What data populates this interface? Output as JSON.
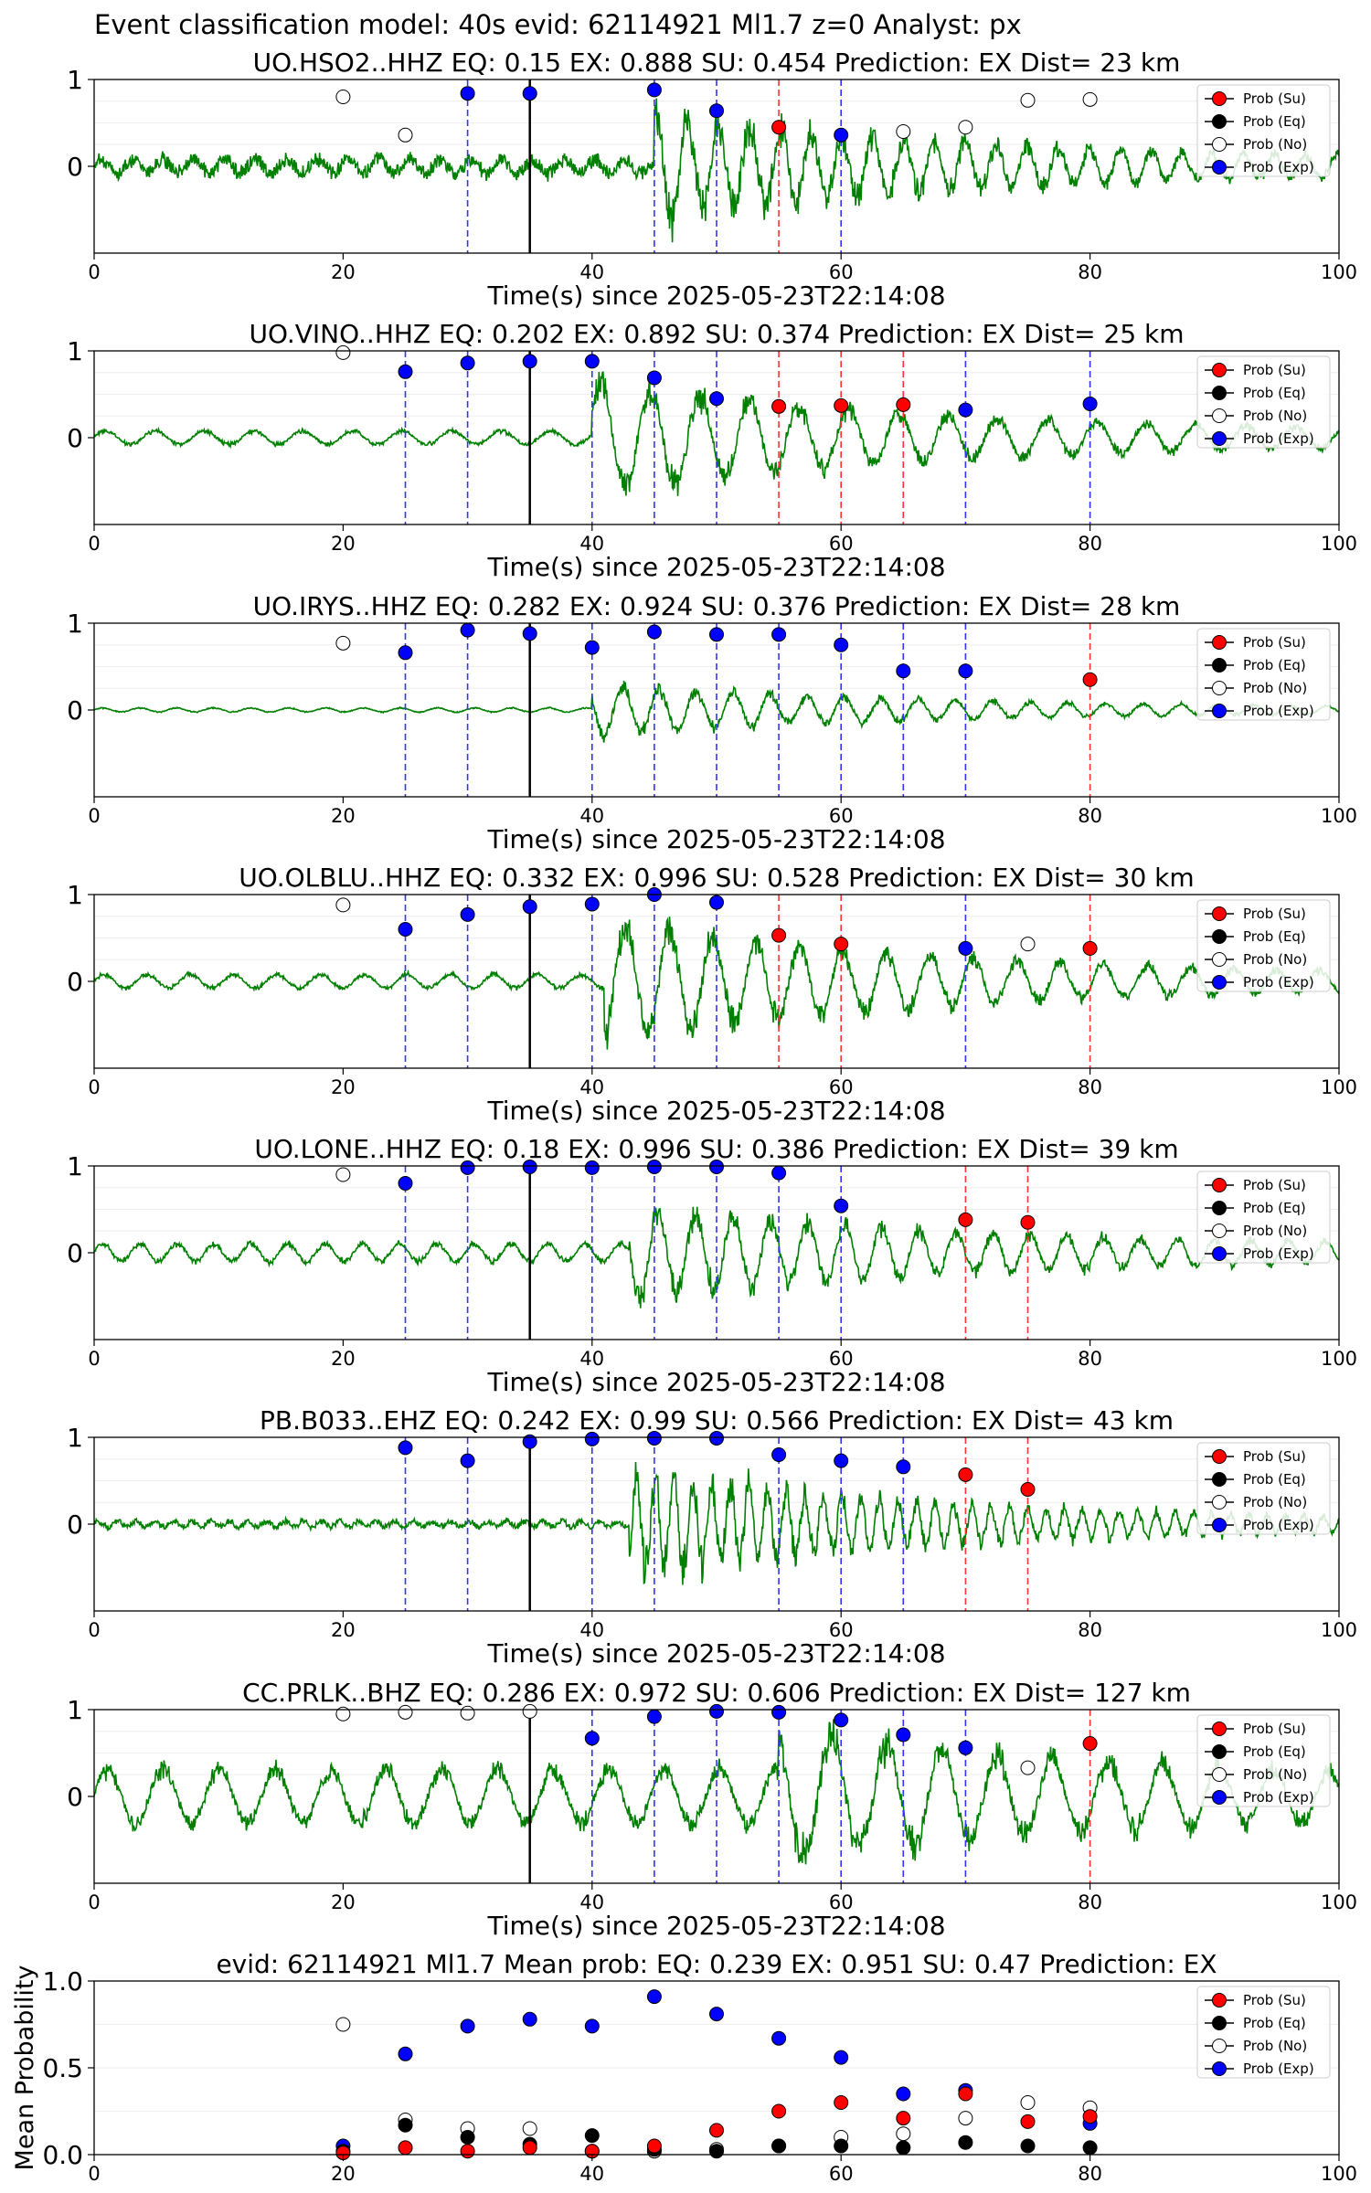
{
  "figure": {
    "suptitle": "Event classification model: 40s evid: 62114921 Ml1.7 z=0 Analyst: px"
  },
  "legend_labels": [
    "Prob (Su)",
    "Prob (Eq)",
    "Prob (No)",
    "Prob (Exp)"
  ],
  "colors": {
    "waveform": "#008000",
    "su": "#ff0000",
    "eq": "#000000",
    "no": "#ffffff",
    "exp": "#0000ff",
    "vline_su": "#ff3333",
    "vline_exp": "#3333ff",
    "vline_origin": "#000000"
  },
  "chart_data": [
    {
      "type": "line",
      "title": "UO.HSO2..HHZ   EQ: 0.15  EX: 0.888  SU: 0.454   Prediction: EX    Dist= 23 km",
      "xlabel": "Time(s) since 2025-05-23T22:14:08",
      "xlim": [
        0,
        100
      ],
      "ylim": [
        -1,
        1
      ],
      "xticks": [
        "0",
        "20",
        "40",
        "60",
        "80",
        "100"
      ],
      "yticks": [
        "0",
        "1"
      ],
      "waveform": {
        "onset": 45,
        "pre_amp": 0.1,
        "post_amp": 0.7,
        "noise": "high",
        "period": 2.5
      },
      "origin_line": 35,
      "marker_lines": [
        {
          "x": 30,
          "class": "exp"
        },
        {
          "x": 45,
          "class": "exp"
        },
        {
          "x": 50,
          "class": "exp"
        },
        {
          "x": 55,
          "class": "su"
        },
        {
          "x": 60,
          "class": "exp"
        }
      ],
      "points": [
        {
          "x": 20,
          "y": 0.8,
          "class": "no"
        },
        {
          "x": 25,
          "y": 0.36,
          "class": "no"
        },
        {
          "x": 30,
          "y": 0.84,
          "class": "exp"
        },
        {
          "x": 35,
          "y": 0.84,
          "class": "exp"
        },
        {
          "x": 45,
          "y": 0.88,
          "class": "exp"
        },
        {
          "x": 50,
          "y": 0.64,
          "class": "exp"
        },
        {
          "x": 55,
          "y": 0.45,
          "class": "su"
        },
        {
          "x": 60,
          "y": 0.36,
          "class": "exp"
        },
        {
          "x": 65,
          "y": 0.4,
          "class": "no"
        },
        {
          "x": 70,
          "y": 0.45,
          "class": "no"
        },
        {
          "x": 75,
          "y": 0.76,
          "class": "no"
        },
        {
          "x": 80,
          "y": 0.77,
          "class": "no"
        }
      ]
    },
    {
      "type": "line",
      "title": "UO.VINO..HHZ   EQ: 0.202  EX: 0.892  SU: 0.374   Prediction: EX    Dist= 25 km",
      "xlabel": "Time(s) since 2025-05-23T22:14:08",
      "xlim": [
        0,
        100
      ],
      "ylim": [
        -1,
        1
      ],
      "xticks": [
        "0",
        "20",
        "40",
        "60",
        "80",
        "100"
      ],
      "yticks": [
        "0",
        "1"
      ],
      "waveform": {
        "onset": 40,
        "pre_amp": 0.1,
        "post_amp": 0.75,
        "noise": "low",
        "period": 4
      },
      "origin_line": 35,
      "marker_lines": [
        {
          "x": 25,
          "class": "exp"
        },
        {
          "x": 30,
          "class": "exp"
        },
        {
          "x": 40,
          "class": "exp"
        },
        {
          "x": 45,
          "class": "exp"
        },
        {
          "x": 50,
          "class": "exp"
        },
        {
          "x": 55,
          "class": "su"
        },
        {
          "x": 60,
          "class": "su"
        },
        {
          "x": 65,
          "class": "su"
        },
        {
          "x": 70,
          "class": "exp"
        },
        {
          "x": 80,
          "class": "exp"
        }
      ],
      "points": [
        {
          "x": 20,
          "y": 0.98,
          "class": "no"
        },
        {
          "x": 25,
          "y": 0.76,
          "class": "exp"
        },
        {
          "x": 30,
          "y": 0.86,
          "class": "exp"
        },
        {
          "x": 35,
          "y": 0.88,
          "class": "exp"
        },
        {
          "x": 40,
          "y": 0.88,
          "class": "exp"
        },
        {
          "x": 45,
          "y": 0.69,
          "class": "exp"
        },
        {
          "x": 50,
          "y": 0.45,
          "class": "exp"
        },
        {
          "x": 55,
          "y": 0.36,
          "class": "su"
        },
        {
          "x": 60,
          "y": 0.37,
          "class": "su"
        },
        {
          "x": 65,
          "y": 0.38,
          "class": "su"
        },
        {
          "x": 70,
          "y": 0.32,
          "class": "exp"
        },
        {
          "x": 80,
          "y": 0.39,
          "class": "exp"
        }
      ]
    },
    {
      "type": "line",
      "title": "UO.IRYS..HHZ   EQ: 0.282  EX: 0.924  SU: 0.376   Prediction: EX    Dist= 28 km",
      "xlabel": "Time(s) since 2025-05-23T22:14:08",
      "xlim": [
        0,
        100
      ],
      "ylim": [
        -1,
        1
      ],
      "xticks": [
        "0",
        "20",
        "40",
        "60",
        "80",
        "100"
      ],
      "yticks": [
        "0",
        "1"
      ],
      "waveform": {
        "onset": 40,
        "pre_amp": 0.03,
        "post_amp": 0.35,
        "noise": "low",
        "period": 3
      },
      "origin_line": 35,
      "marker_lines": [
        {
          "x": 25,
          "class": "exp"
        },
        {
          "x": 30,
          "class": "exp"
        },
        {
          "x": 40,
          "class": "exp"
        },
        {
          "x": 45,
          "class": "exp"
        },
        {
          "x": 50,
          "class": "exp"
        },
        {
          "x": 55,
          "class": "exp"
        },
        {
          "x": 60,
          "class": "exp"
        },
        {
          "x": 65,
          "class": "exp"
        },
        {
          "x": 70,
          "class": "exp"
        },
        {
          "x": 80,
          "class": "su"
        }
      ],
      "points": [
        {
          "x": 20,
          "y": 0.77,
          "class": "no"
        },
        {
          "x": 25,
          "y": 0.66,
          "class": "exp"
        },
        {
          "x": 30,
          "y": 0.92,
          "class": "exp"
        },
        {
          "x": 35,
          "y": 0.88,
          "class": "exp"
        },
        {
          "x": 40,
          "y": 0.72,
          "class": "exp"
        },
        {
          "x": 45,
          "y": 0.9,
          "class": "exp"
        },
        {
          "x": 50,
          "y": 0.87,
          "class": "exp"
        },
        {
          "x": 55,
          "y": 0.87,
          "class": "exp"
        },
        {
          "x": 60,
          "y": 0.75,
          "class": "exp"
        },
        {
          "x": 65,
          "y": 0.45,
          "class": "exp"
        },
        {
          "x": 70,
          "y": 0.45,
          "class": "exp"
        },
        {
          "x": 80,
          "y": 0.35,
          "class": "su"
        }
      ]
    },
    {
      "type": "line",
      "title": "UO.OLBLU..HHZ   EQ: 0.332  EX: 0.996  SU: 0.528   Prediction: EX    Dist= 30 km",
      "xlabel": "Time(s) since 2025-05-23T22:14:08",
      "xlim": [
        0,
        100
      ],
      "ylim": [
        -1,
        1
      ],
      "xticks": [
        "0",
        "20",
        "40",
        "60",
        "80",
        "100"
      ],
      "yticks": [
        "0",
        "1"
      ],
      "waveform": {
        "onset": 41,
        "pre_amp": 0.1,
        "post_amp": 0.8,
        "noise": "low",
        "period": 3.5
      },
      "origin_line": 35,
      "marker_lines": [
        {
          "x": 25,
          "class": "exp"
        },
        {
          "x": 30,
          "class": "exp"
        },
        {
          "x": 40,
          "class": "exp"
        },
        {
          "x": 45,
          "class": "exp"
        },
        {
          "x": 50,
          "class": "exp"
        },
        {
          "x": 55,
          "class": "su"
        },
        {
          "x": 60,
          "class": "su"
        },
        {
          "x": 70,
          "class": "exp"
        },
        {
          "x": 80,
          "class": "su"
        }
      ],
      "points": [
        {
          "x": 20,
          "y": 0.88,
          "class": "no"
        },
        {
          "x": 25,
          "y": 0.6,
          "class": "exp"
        },
        {
          "x": 30,
          "y": 0.77,
          "class": "exp"
        },
        {
          "x": 35,
          "y": 0.86,
          "class": "exp"
        },
        {
          "x": 40,
          "y": 0.89,
          "class": "exp"
        },
        {
          "x": 45,
          "y": 1.0,
          "class": "exp"
        },
        {
          "x": 50,
          "y": 0.91,
          "class": "exp"
        },
        {
          "x": 55,
          "y": 0.53,
          "class": "su"
        },
        {
          "x": 60,
          "y": 0.43,
          "class": "su"
        },
        {
          "x": 70,
          "y": 0.38,
          "class": "exp"
        },
        {
          "x": 75,
          "y": 0.43,
          "class": "no"
        },
        {
          "x": 80,
          "y": 0.38,
          "class": "su"
        }
      ]
    },
    {
      "type": "line",
      "title": "UO.LONE..HHZ   EQ: 0.18  EX: 0.996  SU: 0.386   Prediction: EX    Dist= 39 km",
      "xlabel": "Time(s) since 2025-05-23T22:14:08",
      "xlim": [
        0,
        100
      ],
      "ylim": [
        -1,
        1
      ],
      "xticks": [
        "0",
        "20",
        "40",
        "60",
        "80",
        "100"
      ],
      "yticks": [
        "0",
        "1"
      ],
      "waveform": {
        "onset": 43,
        "pre_amp": 0.13,
        "post_amp": 0.6,
        "noise": "low",
        "period": 3
      },
      "origin_line": 35,
      "marker_lines": [
        {
          "x": 25,
          "class": "exp"
        },
        {
          "x": 30,
          "class": "exp"
        },
        {
          "x": 40,
          "class": "exp"
        },
        {
          "x": 45,
          "class": "exp"
        },
        {
          "x": 50,
          "class": "exp"
        },
        {
          "x": 55,
          "class": "exp"
        },
        {
          "x": 60,
          "class": "exp"
        },
        {
          "x": 70,
          "class": "su"
        },
        {
          "x": 75,
          "class": "su"
        }
      ],
      "points": [
        {
          "x": 20,
          "y": 0.9,
          "class": "no"
        },
        {
          "x": 25,
          "y": 0.8,
          "class": "exp"
        },
        {
          "x": 30,
          "y": 0.98,
          "class": "exp"
        },
        {
          "x": 35,
          "y": 0.99,
          "class": "exp"
        },
        {
          "x": 40,
          "y": 0.98,
          "class": "exp"
        },
        {
          "x": 45,
          "y": 0.99,
          "class": "exp"
        },
        {
          "x": 50,
          "y": 0.99,
          "class": "exp"
        },
        {
          "x": 55,
          "y": 0.92,
          "class": "exp"
        },
        {
          "x": 60,
          "y": 0.54,
          "class": "exp"
        },
        {
          "x": 70,
          "y": 0.38,
          "class": "su"
        },
        {
          "x": 75,
          "y": 0.35,
          "class": "su"
        }
      ]
    },
    {
      "type": "line",
      "title": "PB.B033..EHZ   EQ: 0.242  EX: 0.99  SU: 0.566   Prediction: EX    Dist= 43 km",
      "xlabel": "Time(s) since 2025-05-23T22:14:08",
      "xlim": [
        0,
        100
      ],
      "ylim": [
        -1,
        1
      ],
      "xticks": [
        "0",
        "20",
        "40",
        "60",
        "80",
        "100"
      ],
      "yticks": [
        "0",
        "1"
      ],
      "waveform": {
        "onset": 43,
        "pre_amp": 0.04,
        "post_amp": 0.7,
        "noise": "high",
        "period": 1.5
      },
      "origin_line": 35,
      "marker_lines": [
        {
          "x": 25,
          "class": "exp"
        },
        {
          "x": 30,
          "class": "exp"
        },
        {
          "x": 40,
          "class": "exp"
        },
        {
          "x": 45,
          "class": "exp"
        },
        {
          "x": 55,
          "class": "exp"
        },
        {
          "x": 60,
          "class": "exp"
        },
        {
          "x": 65,
          "class": "exp"
        },
        {
          "x": 70,
          "class": "su"
        },
        {
          "x": 75,
          "class": "su"
        }
      ],
      "points": [
        {
          "x": 25,
          "y": 0.88,
          "class": "exp"
        },
        {
          "x": 30,
          "y": 0.73,
          "class": "exp"
        },
        {
          "x": 35,
          "y": 0.95,
          "class": "exp"
        },
        {
          "x": 40,
          "y": 0.98,
          "class": "exp"
        },
        {
          "x": 45,
          "y": 0.99,
          "class": "exp"
        },
        {
          "x": 50,
          "y": 0.99,
          "class": "exp"
        },
        {
          "x": 55,
          "y": 0.8,
          "class": "exp"
        },
        {
          "x": 60,
          "y": 0.73,
          "class": "exp"
        },
        {
          "x": 65,
          "y": 0.66,
          "class": "exp"
        },
        {
          "x": 70,
          "y": 0.57,
          "class": "su"
        },
        {
          "x": 75,
          "y": 0.4,
          "class": "su"
        }
      ]
    },
    {
      "type": "line",
      "title": "CC.PRLK..BHZ   EQ: 0.286  EX: 0.972  SU: 0.606   Prediction: EX    Dist= 127 km",
      "xlabel": "Time(s) since 2025-05-23T22:14:08",
      "xlim": [
        0,
        100
      ],
      "ylim": [
        -1,
        1
      ],
      "xticks": [
        "0",
        "20",
        "40",
        "60",
        "80",
        "100"
      ],
      "yticks": [
        "0",
        "1"
      ],
      "waveform": {
        "onset": 55,
        "pre_amp": 0.4,
        "post_amp": 0.7,
        "noise": "low",
        "period": 4.5
      },
      "origin_line": 35,
      "marker_lines": [
        {
          "x": 40,
          "class": "exp"
        },
        {
          "x": 45,
          "class": "exp"
        },
        {
          "x": 50,
          "class": "exp"
        },
        {
          "x": 55,
          "class": "exp"
        },
        {
          "x": 60,
          "class": "exp"
        },
        {
          "x": 65,
          "class": "exp"
        },
        {
          "x": 70,
          "class": "exp"
        },
        {
          "x": 80,
          "class": "su"
        }
      ],
      "points": [
        {
          "x": 20,
          "y": 0.95,
          "class": "no"
        },
        {
          "x": 25,
          "y": 0.97,
          "class": "no"
        },
        {
          "x": 30,
          "y": 0.96,
          "class": "no"
        },
        {
          "x": 35,
          "y": 0.98,
          "class": "no"
        },
        {
          "x": 40,
          "y": 0.67,
          "class": "exp"
        },
        {
          "x": 45,
          "y": 0.92,
          "class": "exp"
        },
        {
          "x": 50,
          "y": 0.98,
          "class": "exp"
        },
        {
          "x": 55,
          "y": 0.97,
          "class": "exp"
        },
        {
          "x": 60,
          "y": 0.88,
          "class": "exp"
        },
        {
          "x": 65,
          "y": 0.71,
          "class": "exp"
        },
        {
          "x": 70,
          "y": 0.56,
          "class": "exp"
        },
        {
          "x": 75,
          "y": 0.33,
          "class": "no"
        },
        {
          "x": 80,
          "y": 0.61,
          "class": "su"
        }
      ]
    },
    {
      "type": "scatter",
      "title": "evid: 62114921  Ml1.7   Mean prob:   EQ: 0.239  EX: 0.951  SU: 0.47   Prediction: EX",
      "xlabel": "",
      "ylabel": "Mean Probability",
      "xlim": [
        0,
        100
      ],
      "ylim": [
        0,
        1
      ],
      "xticks": [
        "0",
        "20",
        "40",
        "60",
        "80",
        "100"
      ],
      "yticks": [
        "0.0",
        "0.5",
        "1.0"
      ],
      "series": [
        {
          "name": "Prob (Su)",
          "class": "su",
          "x": [
            20,
            25,
            30,
            35,
            40,
            45,
            50,
            55,
            60,
            65,
            70,
            75,
            80
          ],
          "values": [
            0.01,
            0.04,
            0.02,
            0.04,
            0.02,
            0.05,
            0.14,
            0.25,
            0.3,
            0.21,
            0.35,
            0.19,
            0.22
          ]
        },
        {
          "name": "Prob (Eq)",
          "class": "eq",
          "x": [
            20,
            25,
            30,
            35,
            40,
            45,
            50,
            55,
            60,
            65,
            70,
            75,
            80
          ],
          "values": [
            0.02,
            0.17,
            0.1,
            0.06,
            0.11,
            0.03,
            0.02,
            0.05,
            0.05,
            0.04,
            0.07,
            0.05,
            0.04
          ]
        },
        {
          "name": "Prob (No)",
          "class": "no",
          "x": [
            20,
            25,
            30,
            35,
            40,
            45,
            50,
            55,
            60,
            65,
            70,
            75,
            80
          ],
          "values": [
            0.75,
            0.2,
            0.15,
            0.15,
            0.02,
            0.02,
            0.03,
            0.05,
            0.1,
            0.12,
            0.21,
            0.3,
            0.27
          ]
        },
        {
          "name": "Prob (Exp)",
          "class": "exp",
          "x": [
            20,
            25,
            30,
            35,
            40,
            45,
            50,
            55,
            60,
            65,
            70,
            75,
            80
          ],
          "values": [
            0.05,
            0.58,
            0.74,
            0.78,
            0.74,
            0.91,
            0.81,
            0.67,
            0.56,
            0.35,
            0.37,
            null,
            0.18
          ]
        }
      ]
    }
  ]
}
